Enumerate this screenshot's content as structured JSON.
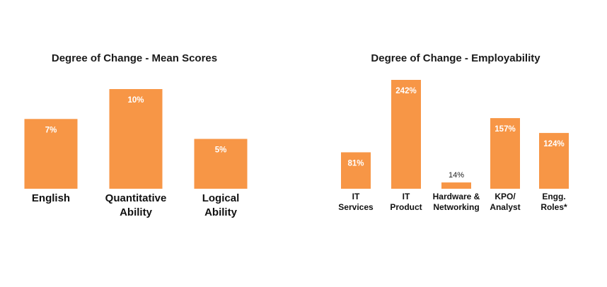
{
  "chart_data": [
    {
      "type": "bar",
      "title": "Degree of Change - Mean Scores",
      "categories": [
        "English",
        "Quantitative Ability",
        "Logical Ability"
      ],
      "category_lines": [
        [
          "English"
        ],
        [
          "Quantitative",
          "Ability"
        ],
        [
          "Logical",
          "Ability"
        ]
      ],
      "values": [
        7,
        10,
        5
      ],
      "data_labels": [
        "7%",
        "10%",
        "5%"
      ],
      "label_placement": "inside-top",
      "unit": "%",
      "ylim": [
        0,
        10
      ],
      "bar_color": "#F79646",
      "grid": false,
      "axes_visible": false
    },
    {
      "type": "bar",
      "title": "Degree of Change - Employability",
      "categories": [
        "IT Services",
        "IT Product",
        "Hardware & Networking",
        "KPO/ Analyst",
        "Engg. Roles*"
      ],
      "category_lines": [
        [
          "IT",
          "Services"
        ],
        [
          "IT",
          "Product"
        ],
        [
          "Hardware &",
          "Networking"
        ],
        [
          "KPO/",
          "Analyst"
        ],
        [
          "Engg.",
          "Roles*"
        ]
      ],
      "values": [
        81,
        242,
        14,
        157,
        124
      ],
      "data_labels": [
        "81%",
        "242%",
        "14%",
        "157%",
        "124%"
      ],
      "label_placement": "inside-top (outside-above for small bars)",
      "unit": "%",
      "ylim": [
        0,
        242
      ],
      "bar_color": "#F79646",
      "grid": false,
      "axes_visible": false
    }
  ]
}
